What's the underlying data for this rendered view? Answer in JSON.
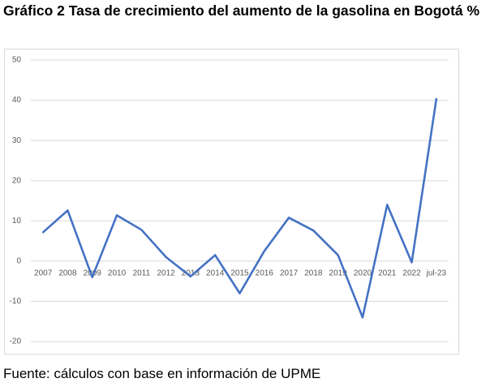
{
  "chart_data": {
    "type": "line",
    "title": "Gráfico 2 Tasa de crecimiento del aumento de la gasolina en Bogotá %",
    "source": "Fuente: cálculos con base en información de UPME",
    "categories": [
      "2007",
      "2008",
      "2009",
      "2010",
      "2011",
      "2012",
      "2013",
      "2014",
      "2015",
      "2016",
      "2017",
      "2018",
      "2019",
      "2020",
      "2021",
      "2022",
      "jul-23"
    ],
    "series": [
      {
        "name": "Tasa de crecimiento",
        "color": "#4472c4",
        "values": [
          7.2,
          12.6,
          -4,
          11.4,
          7.8,
          1,
          -3.8,
          1.5,
          -8,
          2.5,
          10.8,
          7.6,
          1.5,
          -14,
          14,
          -0.3,
          40.3
        ]
      }
    ],
    "ylim": [
      -20,
      50
    ],
    "yticks": [
      -20,
      -10,
      0,
      10,
      20,
      30,
      40,
      50
    ],
    "grid": true
  }
}
